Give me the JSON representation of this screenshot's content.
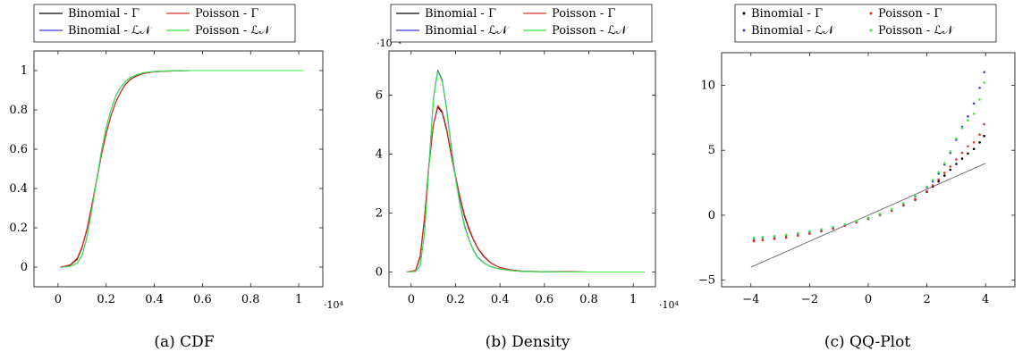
{
  "colors": {
    "binomial_gamma": "#000000",
    "poisson_gamma": "#e8322a",
    "binomial_ln": "#3b3bdc",
    "poisson_ln": "#3fe83f",
    "reference": "#555555"
  },
  "chart_data": [
    {
      "type": "line",
      "caption": "(a) CDF",
      "x_multiplier": "·10⁴",
      "xlim": [
        -0.1,
        1.1
      ],
      "ylim": [
        -0.1,
        1.1
      ],
      "xticks": [
        0,
        0.2,
        0.4,
        0.6,
        0.8,
        1
      ],
      "xtick_labels": [
        "0",
        "0.2",
        "0.4",
        "0.6",
        "0.8",
        "1"
      ],
      "yticks": [
        0,
        0.2,
        0.4,
        0.6,
        0.8,
        1
      ],
      "ytick_labels": [
        "0",
        "0.2",
        "0.4",
        "0.6",
        "0.8",
        "1"
      ],
      "legend": [
        "Binomial - Γ",
        "Poisson - Γ",
        "Binomial - ℒ𝒩",
        "Poisson - ℒ𝒩"
      ],
      "series": [
        {
          "name": "Binomial - Γ",
          "color_key": "binomial_gamma",
          "x": [
            0.01,
            0.05,
            0.08,
            0.1,
            0.12,
            0.14,
            0.16,
            0.18,
            0.2,
            0.22,
            0.24,
            0.26,
            0.28,
            0.3,
            0.33,
            0.36,
            0.4,
            0.45,
            0.5,
            0.55,
            0.6,
            0.7,
            0.8,
            0.9,
            1.02
          ],
          "y": [
            0,
            0.01,
            0.04,
            0.1,
            0.19,
            0.31,
            0.44,
            0.57,
            0.68,
            0.77,
            0.84,
            0.89,
            0.93,
            0.955,
            0.975,
            0.987,
            0.994,
            0.997,
            0.999,
            1,
            1,
            1,
            1,
            1,
            1
          ]
        },
        {
          "name": "Poisson - Γ",
          "color_key": "poisson_gamma",
          "x": [
            0.01,
            0.05,
            0.08,
            0.1,
            0.12,
            0.14,
            0.16,
            0.18,
            0.2,
            0.22,
            0.24,
            0.26,
            0.28,
            0.3,
            0.33,
            0.36,
            0.4,
            0.45,
            0.5,
            0.55,
            0.6,
            0.7,
            0.8,
            0.9,
            1.02
          ],
          "y": [
            0,
            0.012,
            0.045,
            0.105,
            0.195,
            0.315,
            0.445,
            0.57,
            0.68,
            0.77,
            0.84,
            0.89,
            0.928,
            0.953,
            0.974,
            0.986,
            0.994,
            0.997,
            0.999,
            1,
            1,
            1,
            1,
            1,
            1
          ]
        },
        {
          "name": "Binomial - ℒ𝒩",
          "color_key": "binomial_ln",
          "x": [
            0.02,
            0.05,
            0.08,
            0.1,
            0.12,
            0.14,
            0.16,
            0.18,
            0.2,
            0.22,
            0.24,
            0.26,
            0.28,
            0.3,
            0.33,
            0.36,
            0.4,
            0.45,
            0.5,
            0.55,
            0.6,
            0.7,
            0.8,
            0.9,
            1.02
          ],
          "y": [
            0,
            0.004,
            0.02,
            0.06,
            0.15,
            0.29,
            0.44,
            0.59,
            0.71,
            0.8,
            0.87,
            0.915,
            0.945,
            0.965,
            0.98,
            0.99,
            0.995,
            0.998,
            0.999,
            1,
            1,
            1,
            1,
            1,
            1
          ]
        },
        {
          "name": "Poisson - ℒ𝒩",
          "color_key": "poisson_ln",
          "x": [
            0.02,
            0.05,
            0.08,
            0.1,
            0.12,
            0.14,
            0.16,
            0.18,
            0.2,
            0.22,
            0.24,
            0.26,
            0.28,
            0.3,
            0.33,
            0.36,
            0.4,
            0.45,
            0.5,
            0.55,
            0.6,
            0.7,
            0.8,
            0.9,
            1.02
          ],
          "y": [
            0,
            0.004,
            0.02,
            0.06,
            0.15,
            0.29,
            0.44,
            0.59,
            0.71,
            0.8,
            0.87,
            0.915,
            0.945,
            0.965,
            0.98,
            0.99,
            0.995,
            0.998,
            0.999,
            1,
            1,
            1,
            1,
            1,
            1
          ]
        }
      ]
    },
    {
      "type": "line",
      "caption": "(b) Density",
      "x_multiplier": "·10⁴",
      "y_multiplier": "·10⁻⁴",
      "xlim": [
        -0.1,
        1.1
      ],
      "ylim": [
        -0.5,
        7.5
      ],
      "xticks": [
        0,
        0.2,
        0.4,
        0.6,
        0.8,
        1
      ],
      "xtick_labels": [
        "0",
        "0.2",
        "0.4",
        "0.6",
        "0.8",
        "1"
      ],
      "yticks": [
        0,
        2,
        4,
        6
      ],
      "ytick_labels": [
        "0",
        "2",
        "4",
        "6"
      ],
      "legend": [
        "Binomial - Γ",
        "Poisson - Γ",
        "Binomial - ℒ𝒩",
        "Poisson - ℒ𝒩"
      ],
      "series": [
        {
          "name": "Binomial - Γ",
          "color_key": "binomial_gamma",
          "x": [
            -0.02,
            0.02,
            0.04,
            0.06,
            0.08,
            0.1,
            0.12,
            0.14,
            0.16,
            0.18,
            0.2,
            0.22,
            0.24,
            0.26,
            0.28,
            0.3,
            0.33,
            0.36,
            0.4,
            0.45,
            0.5,
            0.6,
            0.7,
            0.8,
            0.9,
            1.05
          ],
          "y": [
            0,
            0.05,
            0.5,
            1.8,
            3.6,
            5.0,
            5.6,
            5.4,
            4.8,
            4.0,
            3.2,
            2.5,
            1.9,
            1.45,
            1.1,
            0.8,
            0.5,
            0.3,
            0.15,
            0.07,
            0.03,
            0.01,
            0.01,
            0,
            0,
            0
          ]
        },
        {
          "name": "Poisson - Γ",
          "color_key": "poisson_gamma",
          "x": [
            -0.02,
            0.02,
            0.04,
            0.06,
            0.08,
            0.1,
            0.12,
            0.14,
            0.16,
            0.18,
            0.2,
            0.22,
            0.24,
            0.26,
            0.28,
            0.3,
            0.33,
            0.36,
            0.4,
            0.45,
            0.5,
            0.6,
            0.7,
            0.8,
            0.9,
            1.05
          ],
          "y": [
            0,
            0.06,
            0.55,
            1.85,
            3.65,
            5.0,
            5.65,
            5.45,
            4.85,
            4.05,
            3.25,
            2.55,
            1.95,
            1.5,
            1.12,
            0.82,
            0.52,
            0.31,
            0.15,
            0.07,
            0.03,
            0.01,
            0.01,
            0,
            0,
            0
          ]
        },
        {
          "name": "Binomial - ℒ𝒩",
          "color_key": "binomial_ln",
          "x": [
            -0.02,
            0.02,
            0.04,
            0.06,
            0.08,
            0.1,
            0.12,
            0.14,
            0.16,
            0.18,
            0.2,
            0.22,
            0.24,
            0.26,
            0.28,
            0.3,
            0.33,
            0.36,
            0.4,
            0.45,
            0.5,
            0.6,
            0.7,
            0.8,
            0.9,
            1.05
          ],
          "y": [
            0,
            0.02,
            0.2,
            1.3,
            3.6,
            5.9,
            6.85,
            6.5,
            5.5,
            4.3,
            3.2,
            2.3,
            1.6,
            1.1,
            0.75,
            0.5,
            0.3,
            0.18,
            0.1,
            0.05,
            0.02,
            0.01,
            0,
            0,
            0,
            0
          ]
        },
        {
          "name": "Poisson - ℒ𝒩",
          "color_key": "poisson_ln",
          "x": [
            -0.02,
            0.02,
            0.04,
            0.06,
            0.08,
            0.1,
            0.12,
            0.14,
            0.16,
            0.18,
            0.2,
            0.22,
            0.24,
            0.26,
            0.28,
            0.3,
            0.33,
            0.36,
            0.4,
            0.45,
            0.5,
            0.6,
            0.7,
            0.8,
            0.9,
            1.05
          ],
          "y": [
            0,
            0.02,
            0.2,
            1.3,
            3.55,
            5.85,
            6.8,
            6.45,
            5.45,
            4.25,
            3.15,
            2.25,
            1.55,
            1.08,
            0.73,
            0.48,
            0.29,
            0.17,
            0.1,
            0.05,
            0.02,
            0.01,
            0,
            0,
            0,
            0
          ]
        }
      ]
    },
    {
      "type": "scatter",
      "caption": "(c) QQ-Plot",
      "xlim": [
        -5,
        5
      ],
      "ylim": [
        -5.5,
        12.5
      ],
      "xticks": [
        -4,
        -2,
        0,
        2,
        4
      ],
      "xtick_labels": [
        "−4",
        "−2",
        "0",
        "2",
        "4"
      ],
      "yticks": [
        -5,
        0,
        5,
        10
      ],
      "ytick_labels": [
        "−5",
        "0",
        "5",
        "10"
      ],
      "legend": [
        "Binomial - Γ",
        "Poisson - Γ",
        "Binomial - ℒ𝒩",
        "Poisson - ℒ𝒩"
      ],
      "reference_line": {
        "x": [
          -4,
          4
        ],
        "y": [
          -4,
          4
        ]
      },
      "series": [
        {
          "name": "Binomial - Γ",
          "color_key": "binomial_gamma",
          "x": [
            -3.9,
            -3.6,
            -3.2,
            -2.8,
            -2.4,
            -2,
            -1.6,
            -1.2,
            -0.8,
            -0.4,
            0,
            0.4,
            0.8,
            1.2,
            1.6,
            2,
            2.2,
            2.4,
            2.6,
            2.8,
            3,
            3.2,
            3.4,
            3.6,
            3.8,
            3.95
          ],
          "y": [
            -1.95,
            -1.9,
            -1.8,
            -1.7,
            -1.55,
            -1.4,
            -1.22,
            -1.02,
            -0.8,
            -0.55,
            -0.28,
            0.02,
            0.35,
            0.75,
            1.2,
            1.8,
            2.2,
            2.6,
            3.05,
            3.5,
            3.95,
            4.35,
            4.75,
            5.1,
            5.6,
            6.1
          ]
        },
        {
          "name": "Poisson - Γ",
          "color_key": "poisson_gamma",
          "x": [
            -3.9,
            -3.6,
            -3.2,
            -2.8,
            -2.4,
            -2,
            -1.6,
            -1.2,
            -0.8,
            -0.4,
            0,
            0.4,
            0.8,
            1.2,
            1.6,
            2,
            2.2,
            2.4,
            2.6,
            2.8,
            3,
            3.2,
            3.4,
            3.6,
            3.8,
            3.95
          ],
          "y": [
            -2,
            -1.92,
            -1.82,
            -1.72,
            -1.57,
            -1.42,
            -1.23,
            -1.03,
            -0.8,
            -0.55,
            -0.28,
            0.02,
            0.36,
            0.77,
            1.25,
            1.85,
            2.3,
            2.75,
            3.25,
            3.75,
            4.3,
            4.8,
            5.3,
            5.6,
            6.2,
            7.0
          ]
        },
        {
          "name": "Binomial - ℒ𝒩",
          "color_key": "binomial_ln",
          "x": [
            -3.9,
            -3.6,
            -3.2,
            -2.8,
            -2.4,
            -2,
            -1.6,
            -1.2,
            -0.8,
            -0.4,
            0,
            0.4,
            0.8,
            1.2,
            1.6,
            2,
            2.2,
            2.4,
            2.6,
            2.8,
            3,
            3.2,
            3.4,
            3.6,
            3.8,
            3.95
          ],
          "y": [
            -1.75,
            -1.7,
            -1.62,
            -1.52,
            -1.4,
            -1.26,
            -1.1,
            -0.92,
            -0.72,
            -0.48,
            -0.22,
            0.08,
            0.45,
            0.9,
            1.45,
            2.15,
            2.6,
            3.2,
            3.9,
            4.8,
            5.8,
            6.8,
            7.6,
            8.6,
            9.8,
            11.0
          ]
        },
        {
          "name": "Poisson - ℒ𝒩",
          "color_key": "poisson_ln",
          "x": [
            -3.9,
            -3.6,
            -3.2,
            -2.8,
            -2.4,
            -2,
            -1.6,
            -1.2,
            -0.8,
            -0.4,
            0,
            0.4,
            0.8,
            1.2,
            1.6,
            2,
            2.2,
            2.4,
            2.6,
            2.8,
            3,
            3.2,
            3.4,
            3.6,
            3.8,
            3.95
          ],
          "y": [
            -1.72,
            -1.67,
            -1.6,
            -1.5,
            -1.38,
            -1.24,
            -1.08,
            -0.9,
            -0.7,
            -0.46,
            -0.2,
            0.1,
            0.47,
            0.92,
            1.5,
            2.2,
            2.7,
            3.3,
            4.0,
            4.9,
            5.9,
            6.7,
            7.3,
            7.8,
            8.9,
            10.2
          ]
        }
      ]
    }
  ]
}
